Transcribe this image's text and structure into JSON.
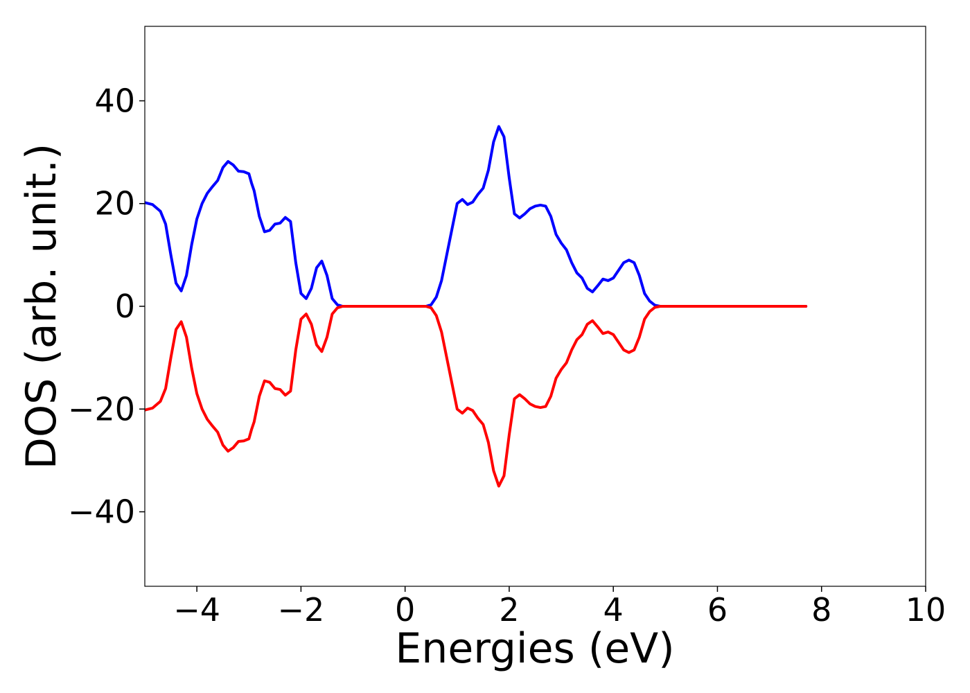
{
  "chart_data": {
    "type": "line",
    "title": "",
    "xlabel": "Energies (eV)",
    "ylabel": "DOS (arb. unit.)",
    "xlim": [
      -5,
      10
    ],
    "ylim": [
      -54.5,
      54.5
    ],
    "xticks": [
      -4,
      -2,
      0,
      2,
      4,
      6,
      8,
      10
    ],
    "xtick_labels": [
      "−4",
      "−2",
      "0",
      "2",
      "4",
      "6",
      "8",
      "10"
    ],
    "yticks": [
      40,
      20,
      0,
      -20,
      -40
    ],
    "ytick_labels": [
      "40",
      "20",
      "0",
      "−20",
      "−40"
    ],
    "grid": false,
    "legend": "none",
    "series": [
      {
        "color": "#0000ff",
        "x": [
          -5.0,
          -4.85,
          -4.7,
          -4.6,
          -4.5,
          -4.4,
          -4.3,
          -4.2,
          -4.1,
          -4.0,
          -3.9,
          -3.8,
          -3.7,
          -3.6,
          -3.5,
          -3.4,
          -3.3,
          -3.2,
          -3.1,
          -3.0,
          -2.95,
          -2.9,
          -2.8,
          -2.7,
          -2.6,
          -2.5,
          -2.4,
          -2.3,
          -2.2,
          -2.1,
          -2.0,
          -1.9,
          -1.8,
          -1.7,
          -1.6,
          -1.5,
          -1.4,
          -1.3,
          -1.2,
          -1.1,
          -1.0,
          -0.9,
          -0.85,
          -0.8,
          -0.7,
          -0.6,
          -0.5,
          -0.4,
          -0.3,
          -0.2,
          0.0,
          0.2,
          0.3,
          0.4,
          0.5,
          0.6,
          0.7,
          0.8,
          0.9,
          1.0,
          1.1,
          1.2,
          1.3,
          1.4,
          1.5,
          1.6,
          1.7,
          1.8,
          1.9,
          2.0,
          2.1,
          2.2,
          2.3,
          2.4,
          2.5,
          2.6,
          2.7,
          2.8,
          2.9,
          3.0,
          3.1,
          3.2,
          3.3,
          3.4,
          3.5,
          3.6,
          3.7,
          3.8,
          3.9,
          4.0,
          4.1,
          4.2,
          4.3,
          4.4,
          4.5,
          4.6,
          4.7,
          4.8,
          4.9,
          5.0,
          5.1,
          5.2,
          5.3,
          5.4,
          5.5,
          5.6,
          5.7,
          5.8,
          5.9,
          6.0,
          6.5,
          7.0,
          7.5,
          7.7
        ],
        "y": [
          20.2,
          19.8,
          18.5,
          16.0,
          10.0,
          4.5,
          3.0,
          6.0,
          12.0,
          17.0,
          20.0,
          22.0,
          23.3,
          24.5,
          27.0,
          28.2,
          27.5,
          26.3,
          26.2,
          25.8,
          24.0,
          22.5,
          17.5,
          14.5,
          14.8,
          16.0,
          16.2,
          17.3,
          16.5,
          8.5,
          2.5,
          1.5,
          3.5,
          7.5,
          8.8,
          6.0,
          1.5,
          0.3,
          0.0,
          0.0,
          0.0,
          0.0,
          0.0,
          0.0,
          0.0,
          0.0,
          0.0,
          0.0,
          0.0,
          0.0,
          0.0,
          0.0,
          0.0,
          0.0,
          0.3,
          1.8,
          5.0,
          10.0,
          15.0,
          20.0,
          20.8,
          19.8,
          20.3,
          21.8,
          23.0,
          26.5,
          32.0,
          35.0,
          33.0,
          25.0,
          18.0,
          17.2,
          18.0,
          19.0,
          19.5,
          19.7,
          19.5,
          17.5,
          14.0,
          12.3,
          11.0,
          8.5,
          6.5,
          5.5,
          3.5,
          2.8,
          4.0,
          5.3,
          5.0,
          5.5,
          7.0,
          8.5,
          9.0,
          8.5,
          6.0,
          2.5,
          1.0,
          0.2,
          0.0,
          0.0,
          0.0,
          0.0,
          0.0,
          0.0,
          0.0,
          0.0,
          0.0,
          0.0,
          0.0,
          0.0,
          0.0,
          0.0,
          0.0,
          0.0
        ],
        "x_offset_note": ""
      },
      {
        "color": "#ff0000",
        "x": [
          -5.0,
          -4.85,
          -4.7,
          -4.6,
          -4.5,
          -4.4,
          -4.3,
          -4.2,
          -4.1,
          -4.0,
          -3.9,
          -3.8,
          -3.7,
          -3.6,
          -3.5,
          -3.4,
          -3.3,
          -3.2,
          -3.1,
          -3.0,
          -2.95,
          -2.9,
          -2.8,
          -2.7,
          -2.6,
          -2.5,
          -2.4,
          -2.3,
          -2.2,
          -2.1,
          -2.0,
          -1.9,
          -1.8,
          -1.7,
          -1.6,
          -1.5,
          -1.4,
          -1.3,
          -1.2,
          -1.1,
          -1.0,
          -0.9,
          -0.85,
          -0.8,
          -0.7,
          -0.6,
          -0.5,
          -0.4,
          -0.3,
          -0.2,
          0.0,
          0.2,
          0.3,
          0.4,
          0.5,
          0.6,
          0.7,
          0.8,
          0.9,
          1.0,
          1.1,
          1.2,
          1.3,
          1.4,
          1.5,
          1.6,
          1.7,
          1.8,
          1.9,
          2.0,
          2.1,
          2.2,
          2.3,
          2.4,
          2.5,
          2.6,
          2.7,
          2.8,
          2.9,
          3.0,
          3.1,
          3.2,
          3.3,
          3.4,
          3.5,
          3.6,
          3.7,
          3.8,
          3.9,
          4.0,
          4.1,
          4.2,
          4.3,
          4.4,
          4.5,
          4.6,
          4.7,
          4.8,
          4.9,
          5.0,
          5.1,
          5.2,
          5.3,
          5.4,
          5.5,
          5.6,
          5.7,
          5.8,
          5.9,
          6.0,
          6.5,
          7.0,
          7.5,
          7.7
        ],
        "y": [
          -20.2,
          -19.8,
          -18.5,
          -16.0,
          -10.0,
          -4.5,
          -3.0,
          -6.0,
          -12.0,
          -17.0,
          -20.0,
          -22.0,
          -23.3,
          -24.5,
          -27.0,
          -28.2,
          -27.5,
          -26.3,
          -26.2,
          -25.8,
          -24.0,
          -22.5,
          -17.5,
          -14.5,
          -14.8,
          -16.0,
          -16.2,
          -17.3,
          -16.5,
          -8.5,
          -2.5,
          -1.5,
          -3.5,
          -7.5,
          -8.8,
          -6.0,
          -1.5,
          -0.3,
          0.0,
          0.0,
          0.0,
          0.0,
          0.0,
          0.0,
          0.0,
          0.0,
          0.0,
          0.0,
          0.0,
          0.0,
          0.0,
          0.0,
          0.0,
          0.0,
          -0.3,
          -1.8,
          -5.0,
          -10.0,
          -15.0,
          -20.0,
          -20.8,
          -19.8,
          -20.3,
          -21.8,
          -23.0,
          -26.5,
          -32.0,
          -35.0,
          -33.0,
          -25.0,
          -18.0,
          -17.2,
          -18.0,
          -19.0,
          -19.5,
          -19.7,
          -19.5,
          -17.5,
          -14.0,
          -12.3,
          -11.0,
          -8.5,
          -6.5,
          -5.5,
          -3.5,
          -2.8,
          -4.0,
          -5.3,
          -5.0,
          -5.5,
          -7.0,
          -8.5,
          -9.0,
          -8.5,
          -6.0,
          -2.5,
          -1.0,
          -0.2,
          0.0,
          0.0,
          0.0,
          0.0,
          0.0,
          0.0,
          0.0,
          0.0,
          0.0,
          0.0,
          0.0,
          0.0,
          0.0,
          0.0,
          0.0,
          0.0
        ]
      }
    ]
  }
}
